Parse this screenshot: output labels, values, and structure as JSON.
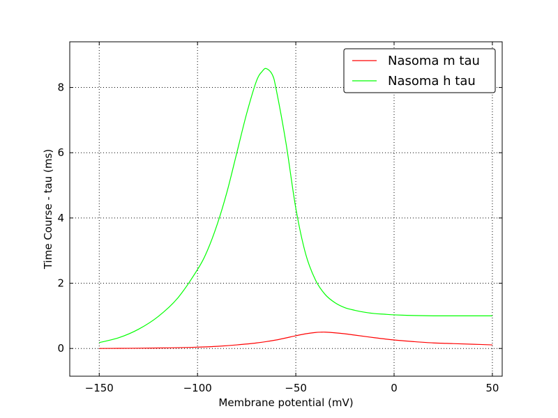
{
  "chart_data": {
    "type": "line",
    "xlabel": "Membrane potential (mV)",
    "ylabel": "Time Course - tau (ms)",
    "xlim": [
      -165,
      55
    ],
    "ylim": [
      -0.85,
      9.4
    ],
    "xticks": [
      -150,
      -100,
      -50,
      0,
      50
    ],
    "xtick_labels": [
      "−150",
      "−100",
      "−50",
      "0",
      "50"
    ],
    "yticks": [
      0,
      2,
      4,
      6,
      8
    ],
    "ytick_labels": [
      "0",
      "2",
      "4",
      "6",
      "8"
    ],
    "grid": true,
    "legend_position": "top-right",
    "series": [
      {
        "name": "Nasoma m tau",
        "color": "#ff0000",
        "x": [
          -150,
          -140,
          -130,
          -120,
          -110,
          -100,
          -90,
          -80,
          -70,
          -60,
          -50,
          -45,
          -40,
          -37,
          -35,
          -30,
          -25,
          -20,
          -10,
          0,
          10,
          20,
          30,
          40,
          50
        ],
        "y": [
          0.0,
          0.004,
          0.008,
          0.015,
          0.024,
          0.04,
          0.066,
          0.11,
          0.17,
          0.26,
          0.39,
          0.45,
          0.49,
          0.5,
          0.5,
          0.48,
          0.45,
          0.41,
          0.33,
          0.26,
          0.21,
          0.17,
          0.15,
          0.13,
          0.11
        ]
      },
      {
        "name": "Nasoma h tau",
        "color": "#00ff00",
        "x": [
          -150,
          -140,
          -130,
          -120,
          -110,
          -100,
          -95,
          -90,
          -85,
          -80,
          -75,
          -70,
          -67,
          -65,
          -62,
          -60,
          -55,
          -50,
          -45,
          -40,
          -35,
          -30,
          -25,
          -20,
          -15,
          -10,
          -5,
          0,
          10,
          20,
          30,
          40,
          50
        ],
        "y": [
          0.18,
          0.33,
          0.59,
          0.98,
          1.55,
          2.42,
          3.0,
          3.8,
          4.8,
          6.0,
          7.2,
          8.2,
          8.5,
          8.58,
          8.4,
          7.95,
          6.3,
          4.3,
          2.9,
          2.1,
          1.65,
          1.4,
          1.25,
          1.17,
          1.11,
          1.07,
          1.05,
          1.03,
          1.01,
          1.0,
          1.0,
          1.0,
          1.0
        ]
      }
    ]
  }
}
